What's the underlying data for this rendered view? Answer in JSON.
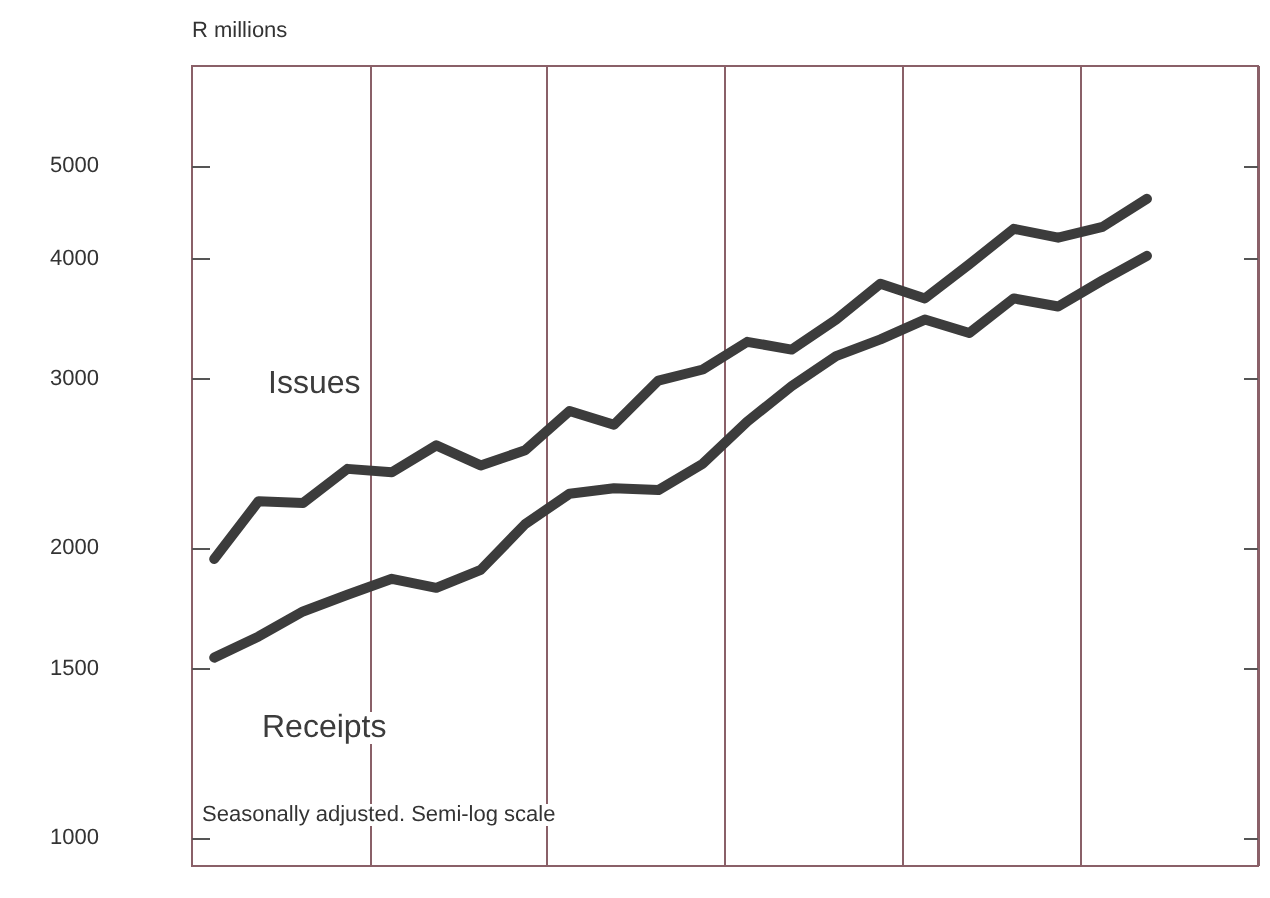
{
  "chart_data": {
    "type": "line",
    "ylabel": "R millions",
    "log": true,
    "grid": "x",
    "legend": false,
    "annotations": [
      "Seasonally adjusted. Semi-log scale"
    ],
    "categories": [
      null,
      null,
      null,
      null,
      null,
      null,
      null,
      null,
      null,
      null,
      null,
      null,
      null,
      null,
      null,
      null,
      null,
      null,
      null,
      null,
      null,
      null,
      null,
      null
    ],
    "ylim": [
      935,
      6350
    ],
    "yticks": [
      1000,
      1500,
      2000,
      3000,
      4000,
      5000
    ],
    "series": [
      {
        "name": "Issues",
        "color": "#3c3c3c",
        "values": [
          1950,
          2240,
          2230,
          2420,
          2400,
          2560,
          2440,
          2530,
          2780,
          2690,
          2990,
          3070,
          3280,
          3220,
          3460,
          3770,
          3640,
          3950,
          4300,
          4210,
          4320,
          4620,
          null,
          null
        ]
      },
      {
        "name": "Receipts",
        "color": "#3c3c3c",
        "values": [
          1540,
          1620,
          1720,
          1790,
          1860,
          1820,
          1900,
          2120,
          2280,
          2310,
          2300,
          2450,
          2710,
          2950,
          3170,
          3300,
          3460,
          3350,
          3640,
          3570,
          3800,
          4030,
          null,
          null
        ]
      }
    ]
  }
}
